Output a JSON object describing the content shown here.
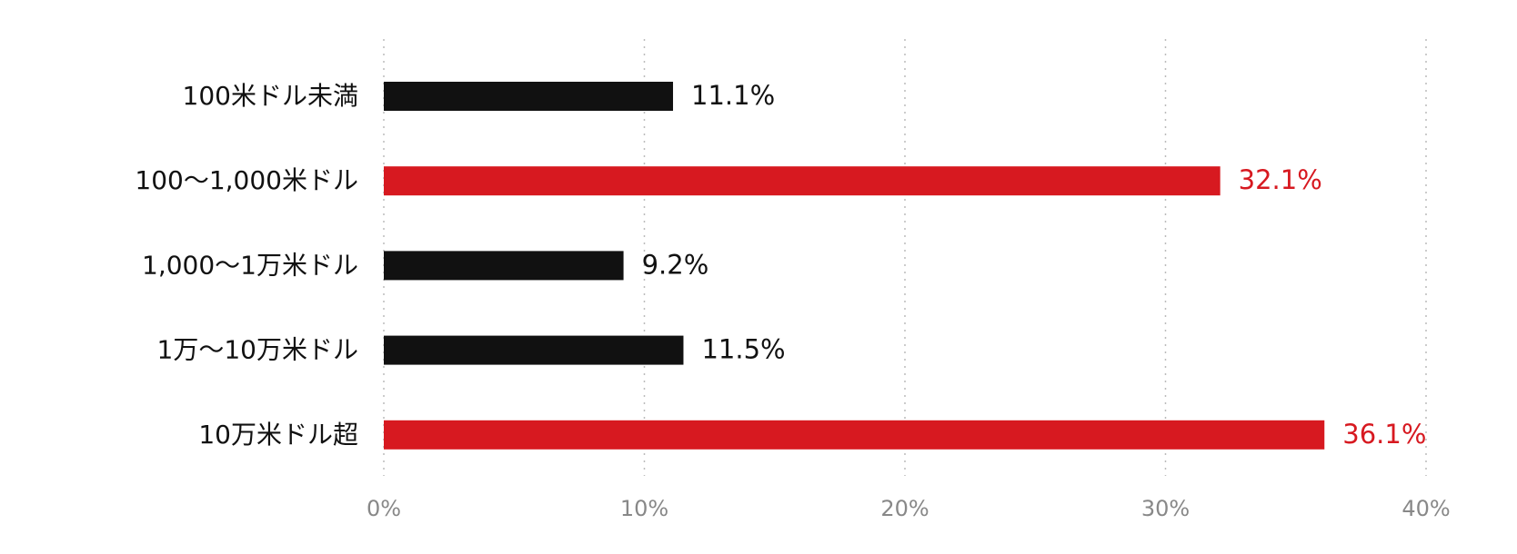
{
  "chart_data": {
    "type": "bar",
    "orientation": "horizontal",
    "categories": [
      "100米ドル未満",
      "100〜1,000米ドル",
      "1,000〜1万米ドル",
      "1万〜10万米ドル",
      "10万米ドル超"
    ],
    "values": [
      11.1,
      32.1,
      9.2,
      11.5,
      36.1
    ],
    "value_labels": [
      "11.1%",
      "32.1%",
      "9.2%",
      "11.5%",
      "36.1%"
    ],
    "colors": [
      "#111111",
      "#d71920",
      "#111111",
      "#111111",
      "#d71920"
    ],
    "xlim": [
      0,
      40
    ],
    "xticks": [
      {
        "value": 0,
        "label": "0%"
      },
      {
        "value": 10,
        "label": "10%"
      },
      {
        "value": 20,
        "label": "20%"
      },
      {
        "value": 30,
        "label": "30%"
      },
      {
        "value": 40,
        "label": "40%"
      }
    ],
    "grid": true
  }
}
